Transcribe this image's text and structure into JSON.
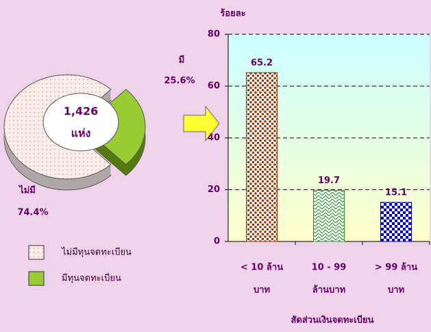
{
  "chart_data": [
    {
      "type": "pie",
      "categories": [
        "ไม่มี",
        "มี"
      ],
      "values": [
        74.4,
        25.6
      ],
      "value_labels": [
        "74.4%",
        "25.6%"
      ],
      "colors": [
        "#fbeee9",
        "#99cc33"
      ],
      "legend": [
        "ไม่มีทุนจดทะเบียน",
        "มีทุนจดทะเบียน"
      ],
      "annotations": [
        "1,426",
        "แห่ง"
      ]
    },
    {
      "type": "bar",
      "y_label": "ร้อยละ",
      "x_label": "สัดส่วนเงินจดทะเบียน",
      "categories": [
        [
          "< 10 ล้าน",
          "บาท"
        ],
        [
          "10 - 99",
          "ล้านบาท"
        ],
        [
          "> 99 ล้าน",
          "บาท"
        ]
      ],
      "values": [
        65.2,
        19.7,
        15.1
      ],
      "colors": [
        "#993300",
        "#339933",
        "#0000cc"
      ],
      "ylim": [
        0,
        80
      ],
      "yticks": [
        0,
        20,
        40,
        60,
        80
      ],
      "grid": true
    }
  ]
}
